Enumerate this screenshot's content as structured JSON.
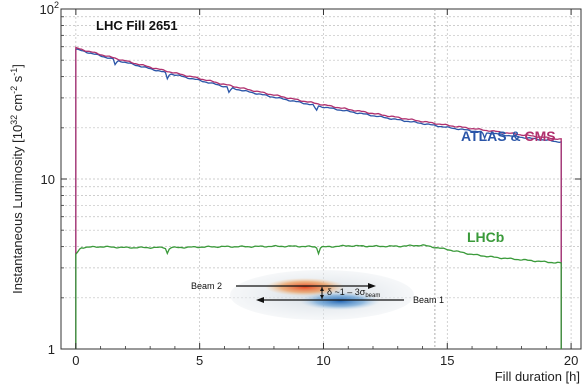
{
  "chart_data": {
    "type": "line",
    "title": "LHC Fill 2651",
    "xlabel": "Fill duration [h]",
    "ylabel": "Instantaneous Luminosity [10",
    "ylabel_exp1": "32",
    "ylabel_mid": " cm",
    "ylabel_exp2": "-2",
    "ylabel_end": " s",
    "ylabel_exp3": "-1",
    "ylabel_tail": "]",
    "xlim": [
      -0.6,
      20.4
    ],
    "ylim": [
      1,
      100
    ],
    "yscale": "log",
    "x_ticks": [
      "0",
      "5",
      "10",
      "15",
      "20"
    ],
    "y_tick_base": "10",
    "y_tick_exp": "2",
    "y_ticks": [
      {
        "value": 100,
        "label": "10",
        "exp": "2"
      },
      {
        "value": 10,
        "label": "10",
        "exp": ""
      },
      {
        "value": 1,
        "label": "1",
        "exp": ""
      }
    ],
    "grid": true,
    "series": [
      {
        "name": "ATLAS",
        "color": "#2a55a8",
        "x": [
          0,
          0.1,
          1,
          2,
          3,
          4,
          5,
          6,
          7,
          8,
          9,
          10,
          11,
          12,
          13,
          14,
          15,
          16,
          17,
          18,
          19,
          19.6
        ],
        "y": [
          58,
          57.5,
          53,
          48.5,
          44.5,
          41,
          38,
          35,
          32.5,
          30.3,
          28.3,
          26.5,
          25,
          23.6,
          22.3,
          21.2,
          20.1,
          19.2,
          18.4,
          17.6,
          16.9,
          16.5
        ]
      },
      {
        "name": "CMS",
        "color": "#b0306e",
        "x": [
          0,
          0.1,
          1,
          2,
          3,
          4,
          5,
          6,
          7,
          8,
          9,
          10,
          11,
          12,
          13,
          14,
          15,
          16,
          17,
          18,
          19,
          19.6
        ],
        "y": [
          59,
          58.5,
          54,
          49.5,
          45.5,
          42,
          39,
          36,
          33.5,
          31.2,
          29.1,
          27.3,
          25.7,
          24.3,
          23,
          21.8,
          20.7,
          19.8,
          19,
          18.2,
          17.5,
          17.1
        ]
      },
      {
        "name": "LHCb",
        "color": "#3a9a3a",
        "x": [
          0,
          0.2,
          1,
          2,
          3,
          4,
          5,
          6,
          7,
          8,
          9,
          10,
          11,
          12,
          13,
          14,
          15,
          16,
          17,
          18,
          19,
          19.6
        ],
        "y": [
          3.6,
          3.95,
          4.0,
          3.95,
          3.95,
          3.95,
          3.98,
          4.0,
          4.0,
          4.02,
          4.02,
          3.98,
          4.05,
          4.02,
          4.02,
          4.08,
          3.85,
          3.6,
          3.45,
          3.35,
          3.25,
          3.2
        ]
      }
    ],
    "dips": [
      {
        "x": 1.6,
        "series": "ATLAS"
      },
      {
        "x": 3.7,
        "series": "ATLAS"
      },
      {
        "x": 6.2,
        "series": "ATLAS"
      },
      {
        "x": 9.7,
        "series": "ATLAS"
      },
      {
        "x": 16.5,
        "series": "ATLAS"
      },
      {
        "x": 3.7,
        "series": "LHCb"
      },
      {
        "x": 9.8,
        "series": "LHCb"
      }
    ],
    "annotations": {
      "atlas_label": "ATLAS",
      "amp": " & ",
      "cms_label": "CMS",
      "lhcb_label": "LHCb",
      "beam2": "Beam 2",
      "beam1": "Beam 1",
      "delta_prefix": "δ ~1 – 3σ",
      "delta_sub": "beam",
      "vertical_marker_x": 14.5
    },
    "colors": {
      "atlas": "#2a55a8",
      "cms": "#b0306e",
      "lhcb": "#3a9a3a",
      "grid": "#bfbfbf",
      "purple_edge": "#8a2a9a"
    }
  }
}
